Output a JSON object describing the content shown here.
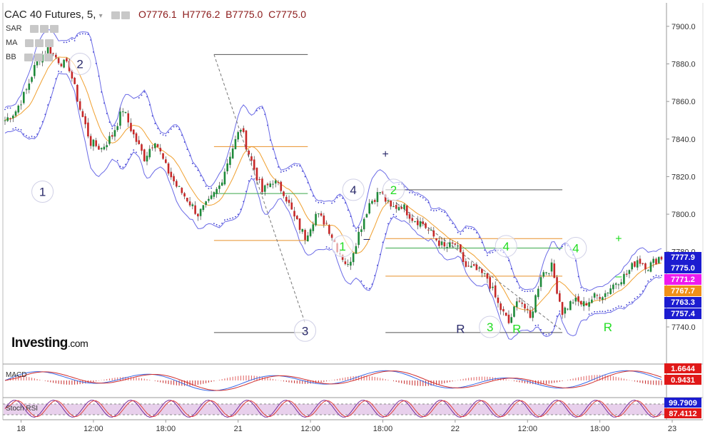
{
  "header": {
    "symbol": "CAC 40 Futures, 5,",
    "open": "O7776.1",
    "high": "H7776.2",
    "bid": "B7775.0",
    "close": "C7775.0"
  },
  "indicators": [
    "SAR",
    "MA",
    "BB"
  ],
  "logo": {
    "main": "Investing",
    "suffix": ".com"
  },
  "panes": {
    "macd": "MACD",
    "stoch": "Stoch RSI"
  },
  "colors": {
    "up": "#1e8a3a",
    "down": "#c62828",
    "band": "#6a6ae6",
    "sar": "#3a3ad0",
    "ma": "#f0a030",
    "fib_orange": "#e8902a",
    "fib_green": "#3aa84a",
    "fib_gray": "#555555",
    "wave_green": "#22dd22",
    "wave_navy": "#2a2a6a"
  },
  "chart_data": {
    "type": "candlestick",
    "y_ticks": [
      7740,
      7760,
      7780,
      7800,
      7820,
      7840,
      7860,
      7880,
      7900
    ],
    "y_tick_labels": [
      "7740.0",
      "",
      "7780.0",
      "7800.0",
      "7820.0",
      "7840.0",
      "7860.0",
      "7880.0",
      "7900.0"
    ],
    "ylim": [
      7729,
      7909
    ],
    "x_labels": [
      "18",
      "12:00",
      "18:00",
      "21",
      "12:00",
      "18:00",
      "22",
      "12:00",
      "18:00",
      "23"
    ],
    "price_path": [
      [
        0,
        7850
      ],
      [
        4,
        7855
      ],
      [
        8,
        7866
      ],
      [
        12,
        7882
      ],
      [
        16,
        7888
      ],
      [
        20,
        7882
      ],
      [
        24,
        7878
      ],
      [
        28,
        7856
      ],
      [
        32,
        7838
      ],
      [
        36,
        7835
      ],
      [
        40,
        7842
      ],
      [
        44,
        7856
      ],
      [
        48,
        7842
      ],
      [
        52,
        7830
      ],
      [
        56,
        7840
      ],
      [
        60,
        7825
      ],
      [
        64,
        7815
      ],
      [
        68,
        7808
      ],
      [
        72,
        7800
      ],
      [
        76,
        7806
      ],
      [
        80,
        7815
      ],
      [
        84,
        7832
      ],
      [
        88,
        7846
      ],
      [
        92,
        7828
      ],
      [
        96,
        7812
      ],
      [
        100,
        7818
      ],
      [
        104,
        7812
      ],
      [
        108,
        7798
      ],
      [
        112,
        7788
      ],
      [
        116,
        7800
      ],
      [
        120,
        7795
      ],
      [
        124,
        7782
      ],
      [
        128,
        7772
      ],
      [
        132,
        7790
      ],
      [
        136,
        7806
      ],
      [
        140,
        7812
      ],
      [
        144,
        7803
      ],
      [
        148,
        7805
      ],
      [
        152,
        7798
      ],
      [
        156,
        7795
      ],
      [
        160,
        7788
      ],
      [
        164,
        7782
      ],
      [
        168,
        7784
      ],
      [
        172,
        7772
      ],
      [
        176,
        7770
      ],
      [
        180,
        7766
      ],
      [
        184,
        7752
      ],
      [
        188,
        7742
      ],
      [
        192,
        7756
      ],
      [
        196,
        7744
      ],
      [
        200,
        7768
      ],
      [
        204,
        7772
      ],
      [
        208,
        7748
      ],
      [
        212,
        7754
      ],
      [
        216,
        7752
      ],
      [
        220,
        7756
      ],
      [
        224,
        7758
      ],
      [
        228,
        7764
      ],
      [
        232,
        7768
      ],
      [
        236,
        7776
      ],
      [
        240,
        7772
      ],
      [
        244,
        7777
      ]
    ],
    "bb_width": 14,
    "price_labels": [
      {
        "value": "7777.9",
        "bg": "#1c1cd0"
      },
      {
        "value": "7775.0",
        "bg": "#1c1cd0"
      },
      {
        "value": "7771.2",
        "bg": "#ee1aee"
      },
      {
        "value": "7767.7",
        "bg": "#f09018"
      },
      {
        "value": "7763.3",
        "bg": "#1c1cd0"
      },
      {
        "value": "7757.4",
        "bg": "#1c1cd0"
      }
    ],
    "wave_labels": [
      {
        "text": "1",
        "color": "navy",
        "circle": true,
        "i": 14,
        "p": 7812
      },
      {
        "text": "2",
        "color": "navy",
        "circle": true,
        "i": 28,
        "p": 7880
      },
      {
        "text": "3",
        "color": "navy",
        "circle": true,
        "i": 112,
        "p": 7738
      },
      {
        "text": "4",
        "color": "navy",
        "circle": true,
        "i": 130,
        "p": 7813
      },
      {
        "text": "1",
        "color": "green",
        "circle": true,
        "i": 126,
        "p": 7783
      },
      {
        "text": "2",
        "color": "green",
        "circle": true,
        "i": 145,
        "p": 7813
      },
      {
        "text": "4",
        "color": "green",
        "circle": true,
        "i": 187,
        "p": 7783
      },
      {
        "text": "4",
        "color": "green",
        "circle": true,
        "i": 213,
        "p": 7782
      },
      {
        "text": "3",
        "color": "green",
        "circle": true,
        "i": 181,
        "p": 7740
      },
      {
        "text": "R",
        "color": "navy",
        "circle": false,
        "i": 170,
        "p": 7739
      },
      {
        "text": "R",
        "color": "green",
        "circle": false,
        "i": 191,
        "p": 7739
      },
      {
        "text": "R",
        "color": "green",
        "circle": false,
        "i": 225,
        "p": 7740
      }
    ],
    "fib_lines": [
      {
        "price": 7885,
        "from": 78,
        "to": 113,
        "color": "gray"
      },
      {
        "price": 7836,
        "from": 78,
        "to": 113,
        "color": "orange"
      },
      {
        "price": 7811,
        "from": 78,
        "to": 113,
        "color": "green"
      },
      {
        "price": 7786,
        "from": 78,
        "to": 113,
        "color": "orange"
      },
      {
        "price": 7737,
        "from": 78,
        "to": 113,
        "color": "gray"
      },
      {
        "price": 7813,
        "from": 142,
        "to": 208,
        "color": "gray"
      },
      {
        "price": 7787,
        "from": 142,
        "to": 208,
        "color": "orange"
      },
      {
        "price": 7782,
        "from": 142,
        "to": 208,
        "color": "green"
      },
      {
        "price": 7767,
        "from": 142,
        "to": 208,
        "color": "orange"
      },
      {
        "price": 7737,
        "from": 142,
        "to": 208,
        "color": "gray"
      }
    ],
    "trend_lines": [
      {
        "i1": 78,
        "p1": 7885,
        "i2": 112,
        "p2": 7742
      },
      {
        "i1": 146,
        "p1": 7806,
        "i2": 208,
        "p2": 7738
      }
    ],
    "macd": {
      "value_a": "1.6644",
      "value_b": "0.9431"
    },
    "stoch": {
      "value_a": "99.7909",
      "value_b": "87.4112"
    }
  }
}
